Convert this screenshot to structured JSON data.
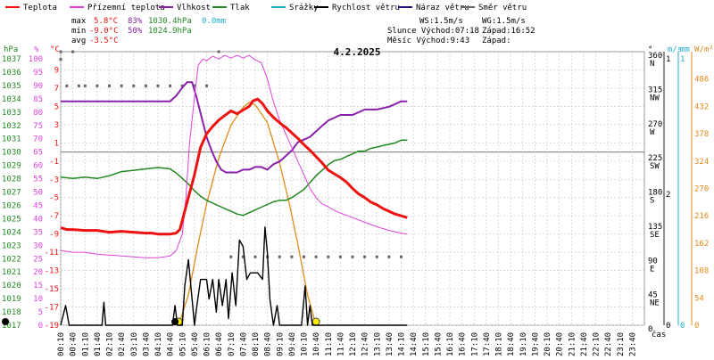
{
  "chart_data": {
    "type": "line",
    "title": "4.2.2025",
    "legend": [
      {
        "label": "Teplota",
        "color": "#ee1111"
      },
      {
        "label": "Přízemní teplota",
        "color": "#dd44dd"
      },
      {
        "label": "Vlhkost",
        "color": "#8822aa"
      },
      {
        "label": "Tlak",
        "color": "#228822"
      },
      {
        "label": "Srážky",
        "color": "#22aacc"
      },
      {
        "label": "Rychlost větru",
        "color": "#000000"
      },
      {
        "label": "Náraz větru",
        "color": "#221188"
      },
      {
        "label": "Směr větru",
        "color": "#666666"
      }
    ],
    "stats": {
      "max_row": {
        "label": "max",
        "temp": "5.8°C",
        "hum": "83%",
        "pres": "1030.4hPa",
        "rain": "0.0mm"
      },
      "min_row": {
        "label": "min",
        "temp": "-9.0°C",
        "hum": "50%",
        "pres": "1024.9hPa"
      },
      "avg_row": {
        "label": "avg",
        "temp": "-3.5°C"
      }
    },
    "info": {
      "ws": "WS:1.5m/s",
      "wg": "WG:1.5m/s",
      "sunline": "Slunce Východ:07:18",
      "sunset": "Západ:16:52",
      "moonline": "Měsíc Východ:9:43",
      "moonset": "Západ:"
    },
    "axis_units": {
      "hpa": "hPa",
      "pct": "%",
      "degc": "°C",
      "deg": "°",
      "ms": "m/s",
      "mm": "mm",
      "wm2": "W/m²"
    },
    "time_label": "čas",
    "x_ticks": [
      "00:10",
      "00:40",
      "01:10",
      "01:40",
      "02:10",
      "02:40",
      "03:10",
      "03:40",
      "04:10",
      "04:40",
      "05:10",
      "05:40",
      "06:10",
      "06:40",
      "07:10",
      "07:40",
      "08:10",
      "08:40",
      "09:10",
      "09:40",
      "10:10",
      "10:40",
      "11:10",
      "11:40",
      "12:10",
      "12:40",
      "13:10",
      "13:40",
      "14:10",
      "14:40",
      "15:10",
      "15:40",
      "16:10",
      "16:40",
      "17:10",
      "17:40",
      "18:10",
      "18:40",
      "19:10",
      "19:40",
      "20:10",
      "20:40",
      "21:10",
      "21:40",
      "22:10",
      "22:40",
      "23:10",
      "23:40"
    ],
    "temp_ticks": [
      9,
      7,
      5,
      3,
      1,
      -1,
      -3,
      -5,
      -7,
      -9,
      -11,
      -13,
      -15,
      -17,
      -19
    ],
    "pct_ticks": [
      100,
      95,
      90,
      85,
      80,
      75,
      70,
      65,
      60,
      55,
      50,
      45,
      40,
      35,
      30,
      25,
      20,
      15,
      10,
      5,
      0
    ],
    "hpa_ticks": [
      1037,
      1036,
      1035,
      1034,
      1033,
      1032,
      1031,
      1030,
      1029,
      1028,
      1027,
      1026,
      1025,
      1024,
      1023,
      1022,
      1021,
      1020,
      1019,
      1018,
      1017
    ],
    "deg_ticks": [
      360,
      315,
      270,
      225,
      180,
      135,
      90,
      45,
      0
    ],
    "dir_labels": [
      "N",
      "NW",
      "W",
      "SW",
      "S",
      "SE",
      "E",
      "NE",
      ""
    ],
    "ms_ticks": [
      2,
      1,
      0
    ],
    "mm_ticks": [
      1,
      0
    ],
    "wm2_ticks": [
      486,
      432,
      378,
      324,
      270,
      216,
      162,
      108,
      54,
      0
    ],
    "ylim_temp": [
      -19,
      11
    ],
    "ylim_pct": [
      0,
      100
    ],
    "ylim_hpa": [
      1017,
      1037
    ],
    "ylim_deg": [
      0,
      360
    ],
    "ylim_wm2": [
      0,
      540
    ],
    "temperature": [
      [
        0,
        -8.3
      ],
      [
        0.5,
        -8.5
      ],
      [
        1,
        -8.5
      ],
      [
        2,
        -8.6
      ],
      [
        3,
        -8.6
      ],
      [
        4,
        -8.8
      ],
      [
        5,
        -8.7
      ],
      [
        6,
        -8.8
      ],
      [
        7,
        -8.9
      ],
      [
        7.5,
        -8.9
      ],
      [
        8,
        -9.0
      ],
      [
        9,
        -9.0
      ],
      [
        9.5,
        -8.9
      ],
      [
        9.8,
        -8.5
      ],
      [
        10,
        -7.5
      ],
      [
        10.3,
        -6.0
      ],
      [
        10.6,
        -4.5
      ],
      [
        11,
        -2.5
      ],
      [
        11.5,
        0.5
      ],
      [
        12,
        2.0
      ],
      [
        12.5,
        2.8
      ],
      [
        13,
        3.5
      ],
      [
        13.5,
        4.0
      ],
      [
        14,
        4.5
      ],
      [
        14.5,
        4.2
      ],
      [
        15,
        4.6
      ],
      [
        15.5,
        5.0
      ],
      [
        15.8,
        5.6
      ],
      [
        16.2,
        5.8
      ],
      [
        16.6,
        5.3
      ],
      [
        17,
        4.5
      ],
      [
        17.5,
        3.8
      ],
      [
        18,
        3.2
      ],
      [
        18.5,
        2.7
      ],
      [
        19,
        2.1
      ],
      [
        19.5,
        1.5
      ],
      [
        20,
        0.8
      ],
      [
        20.5,
        0.2
      ],
      [
        21,
        -0.5
      ],
      [
        21.5,
        -1.2
      ],
      [
        22,
        -2.0
      ],
      [
        22.5,
        -2.4
      ],
      [
        23,
        -2.8
      ],
      [
        23.5,
        -3.3
      ],
      [
        24,
        -4.0
      ],
      [
        24.5,
        -4.6
      ],
      [
        25,
        -5.0
      ],
      [
        25.5,
        -5.5
      ],
      [
        26,
        -5.8
      ],
      [
        26.5,
        -6.2
      ],
      [
        27,
        -6.5
      ],
      [
        27.5,
        -6.8
      ],
      [
        28,
        -7.0
      ],
      [
        28.5,
        -7.2
      ]
    ],
    "ground_temperature": [
      [
        0,
        -10.8
      ],
      [
        1,
        -11.0
      ],
      [
        2,
        -11.0
      ],
      [
        3,
        -11.2
      ],
      [
        4,
        -11.3
      ],
      [
        5,
        -11.4
      ],
      [
        6,
        -11.5
      ],
      [
        7,
        -11.6
      ],
      [
        8,
        -11.6
      ],
      [
        9,
        -11.4
      ],
      [
        9.5,
        -10.8
      ],
      [
        10,
        -9.0
      ],
      [
        10.3,
        -5.0
      ],
      [
        10.6,
        1.0
      ],
      [
        11,
        6.0
      ],
      [
        11.3,
        9.5
      ],
      [
        11.7,
        10.2
      ],
      [
        12,
        10.0
      ],
      [
        12.5,
        10.5
      ],
      [
        13,
        10.2
      ],
      [
        13.5,
        10.6
      ],
      [
        14,
        10.3
      ],
      [
        14.5,
        10.6
      ],
      [
        15,
        10.3
      ],
      [
        15.5,
        10.6
      ],
      [
        16,
        10.1
      ],
      [
        16.5,
        9.8
      ],
      [
        17,
        8.0
      ],
      [
        17.5,
        5.5
      ],
      [
        18,
        3.5
      ],
      [
        18.5,
        2.0
      ],
      [
        19,
        0.5
      ],
      [
        19.5,
        -1.0
      ],
      [
        20,
        -2.5
      ],
      [
        20.5,
        -4.0
      ],
      [
        21,
        -5.0
      ],
      [
        21.5,
        -5.7
      ],
      [
        22,
        -6.0
      ],
      [
        22.5,
        -6.4
      ],
      [
        23,
        -6.7
      ],
      [
        24,
        -7.2
      ],
      [
        25,
        -7.7
      ],
      [
        26,
        -8.2
      ],
      [
        27,
        -8.6
      ],
      [
        28,
        -8.9
      ],
      [
        28.5,
        -9.0
      ]
    ],
    "humidity": [
      [
        0,
        76
      ],
      [
        8,
        76
      ],
      [
        9,
        76
      ],
      [
        9.5,
        78
      ],
      [
        10,
        81
      ],
      [
        10.4,
        83
      ],
      [
        10.8,
        83
      ],
      [
        11.2,
        77
      ],
      [
        11.6,
        70
      ],
      [
        12,
        63
      ],
      [
        12.4,
        58
      ],
      [
        12.8,
        54
      ],
      [
        13.2,
        51
      ],
      [
        13.6,
        50
      ],
      [
        14,
        50
      ],
      [
        14.5,
        50
      ],
      [
        15,
        51
      ],
      [
        15.5,
        51
      ],
      [
        16,
        52
      ],
      [
        16.5,
        52
      ],
      [
        17,
        51
      ],
      [
        17.5,
        53
      ],
      [
        18,
        54
      ],
      [
        18.5,
        56
      ],
      [
        19,
        58
      ],
      [
        19.5,
        61
      ],
      [
        20,
        62
      ],
      [
        20.5,
        63
      ],
      [
        21,
        65
      ],
      [
        21.5,
        67
      ],
      [
        22,
        69
      ],
      [
        22.5,
        70
      ],
      [
        23,
        71
      ],
      [
        24,
        71
      ],
      [
        24.5,
        72
      ],
      [
        25,
        73
      ],
      [
        25.5,
        73
      ],
      [
        26,
        73
      ],
      [
        27,
        74
      ],
      [
        27.5,
        75
      ],
      [
        28,
        76
      ],
      [
        28.5,
        76
      ]
    ],
    "pressure": [
      [
        0,
        1027.7
      ],
      [
        1,
        1027.6
      ],
      [
        2,
        1027.7
      ],
      [
        3,
        1027.6
      ],
      [
        4,
        1027.8
      ],
      [
        5,
        1028.1
      ],
      [
        6,
        1028.2
      ],
      [
        7,
        1028.3
      ],
      [
        8,
        1028.4
      ],
      [
        9,
        1028.3
      ],
      [
        9.5,
        1028.0
      ],
      [
        10,
        1027.6
      ],
      [
        10.5,
        1027.2
      ],
      [
        11,
        1026.7
      ],
      [
        11.5,
        1026.3
      ],
      [
        12,
        1026.0
      ],
      [
        12.5,
        1025.8
      ],
      [
        13,
        1025.6
      ],
      [
        13.5,
        1025.4
      ],
      [
        14,
        1025.2
      ],
      [
        14.5,
        1025.0
      ],
      [
        15,
        1024.9
      ],
      [
        15.5,
        1025.1
      ],
      [
        16,
        1025.3
      ],
      [
        16.5,
        1025.5
      ],
      [
        17,
        1025.7
      ],
      [
        17.5,
        1025.9
      ],
      [
        18,
        1026.0
      ],
      [
        18.5,
        1026.0
      ],
      [
        19,
        1026.2
      ],
      [
        19.5,
        1026.5
      ],
      [
        20,
        1026.8
      ],
      [
        20.5,
        1027.3
      ],
      [
        21,
        1027.8
      ],
      [
        21.5,
        1028.2
      ],
      [
        22,
        1028.6
      ],
      [
        22.5,
        1028.9
      ],
      [
        23,
        1029.0
      ],
      [
        23.5,
        1029.2
      ],
      [
        24,
        1029.4
      ],
      [
        24.5,
        1029.6
      ],
      [
        25,
        1029.6
      ],
      [
        25.5,
        1029.8
      ],
      [
        26,
        1029.9
      ],
      [
        26.5,
        1030.0
      ],
      [
        27,
        1030.1
      ],
      [
        27.5,
        1030.2
      ],
      [
        28,
        1030.4
      ],
      [
        28.5,
        1030.4
      ]
    ],
    "wind_speed": [
      [
        0,
        0
      ],
      [
        0.4,
        0.3
      ],
      [
        0.7,
        0
      ],
      [
        3.4,
        0
      ],
      [
        3.55,
        0.35
      ],
      [
        3.7,
        0
      ],
      [
        9.2,
        0
      ],
      [
        9.4,
        0.3
      ],
      [
        9.6,
        0
      ],
      [
        10,
        0
      ],
      [
        10.2,
        0.6
      ],
      [
        10.5,
        1.0
      ],
      [
        10.8,
        0.4
      ],
      [
        11.0,
        0
      ],
      [
        11.2,
        0.3
      ],
      [
        11.5,
        0.7
      ],
      [
        11.7,
        0.7
      ],
      [
        12,
        0.7
      ],
      [
        12.2,
        0.4
      ],
      [
        12.5,
        0.7
      ],
      [
        12.8,
        0.2
      ],
      [
        13.0,
        0.7
      ],
      [
        13.3,
        0.3
      ],
      [
        13.6,
        0.7
      ],
      [
        13.8,
        0.1
      ],
      [
        14.1,
        0.8
      ],
      [
        14.4,
        0.3
      ],
      [
        14.7,
        1.3
      ],
      [
        15,
        1.2
      ],
      [
        15.3,
        0.7
      ],
      [
        15.6,
        0.8
      ],
      [
        16.2,
        0.8
      ],
      [
        16.6,
        0.7
      ],
      [
        16.8,
        1.5
      ],
      [
        17.0,
        1.1
      ],
      [
        17.2,
        0.4
      ],
      [
        17.5,
        0
      ],
      [
        17.8,
        0.3
      ],
      [
        18.0,
        0
      ],
      [
        19.8,
        0
      ],
      [
        20.1,
        0.6
      ],
      [
        20.3,
        0
      ],
      [
        20.5,
        0.3
      ],
      [
        20.7,
        0
      ],
      [
        21,
        0
      ],
      [
        28.5,
        0
      ]
    ],
    "solar": [
      [
        9.7,
        0
      ],
      [
        10.5,
        60
      ],
      [
        11.3,
        160
      ],
      [
        12,
        240
      ],
      [
        13,
        330
      ],
      [
        14,
        395
      ],
      [
        15,
        430
      ],
      [
        15.5,
        440
      ],
      [
        16,
        435
      ],
      [
        17,
        400
      ],
      [
        18,
        320
      ],
      [
        18.8,
        240
      ],
      [
        19.5,
        160
      ],
      [
        20.3,
        60
      ],
      [
        21,
        0
      ]
    ],
    "wind_dir": [
      [
        0,
        360
      ],
      [
        0,
        350
      ],
      [
        0.5,
        315
      ],
      [
        1,
        360
      ],
      [
        1.5,
        315
      ],
      [
        2,
        315
      ],
      [
        3,
        315
      ],
      [
        4,
        315
      ],
      [
        5,
        315
      ],
      [
        6,
        315
      ],
      [
        7,
        315
      ],
      [
        8,
        315
      ],
      [
        9,
        315
      ],
      [
        10,
        315
      ],
      [
        11,
        315
      ],
      [
        12,
        315
      ],
      [
        13,
        360
      ],
      [
        14,
        90
      ],
      [
        15,
        90
      ],
      [
        16,
        90
      ],
      [
        17,
        90
      ],
      [
        18,
        90
      ],
      [
        19,
        90
      ],
      [
        20,
        90
      ],
      [
        21,
        90
      ],
      [
        22,
        90
      ],
      [
        23,
        90
      ],
      [
        24,
        90
      ],
      [
        25,
        90
      ],
      [
        26,
        90
      ],
      [
        27,
        90
      ],
      [
        28,
        90
      ]
    ]
  }
}
